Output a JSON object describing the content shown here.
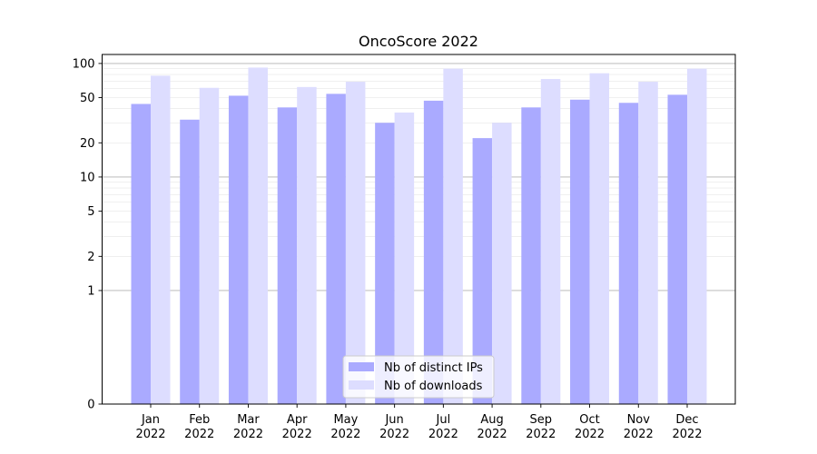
{
  "chart_data": {
    "type": "bar",
    "title": "OncoScore 2022",
    "xlabel": "",
    "ylabel": "",
    "yscale": "symlog",
    "ylim": [
      0,
      120
    ],
    "grid": "y-major-and-minor",
    "legend_position": "lower-center",
    "categories": [
      "Jan\n2022",
      "Feb\n2022",
      "Mar\n2022",
      "Apr\n2022",
      "May\n2022",
      "Jun\n2022",
      "Jul\n2022",
      "Aug\n2022",
      "Sep\n2022",
      "Oct\n2022",
      "Nov\n2022",
      "Dec\n2022"
    ],
    "y_ticks": [
      0,
      1,
      2,
      5,
      10,
      20,
      50,
      100
    ],
    "series": [
      {
        "name": "Nb of distinct IPs",
        "color": "#aaaaff",
        "values": [
          44,
          32,
          52,
          41,
          54,
          30,
          47,
          22,
          41,
          48,
          45,
          53
        ]
      },
      {
        "name": "Nb of downloads",
        "color": "#ddddff",
        "values": [
          78,
          61,
          92,
          62,
          69,
          37,
          90,
          30,
          73,
          82,
          69,
          90
        ]
      }
    ]
  }
}
